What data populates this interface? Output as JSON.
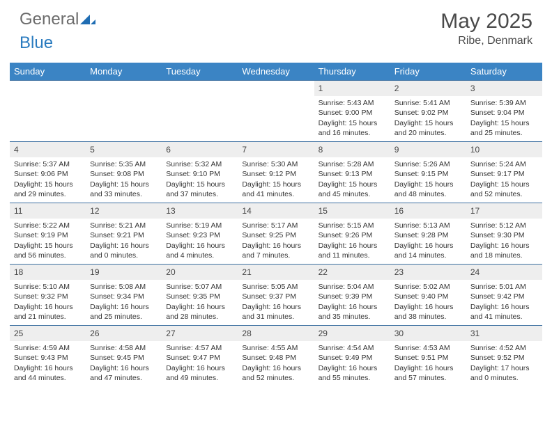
{
  "brand": {
    "name_part1": "General",
    "name_part2": "Blue"
  },
  "title": "May 2025",
  "location": "Ribe, Denmark",
  "colors": {
    "header_bg": "#3b84c4",
    "header_text": "#ffffff",
    "daynum_bg": "#eeeeee",
    "row_border": "#3b6fa0",
    "brand_gray": "#6b6b6b",
    "brand_blue": "#2a7bbf"
  },
  "weekdays": [
    "Sunday",
    "Monday",
    "Tuesday",
    "Wednesday",
    "Thursday",
    "Friday",
    "Saturday"
  ],
  "weeks": [
    [
      null,
      null,
      null,
      null,
      {
        "num": "1",
        "sunrise": "5:43 AM",
        "sunset": "9:00 PM",
        "daylight": "15 hours and 16 minutes."
      },
      {
        "num": "2",
        "sunrise": "5:41 AM",
        "sunset": "9:02 PM",
        "daylight": "15 hours and 20 minutes."
      },
      {
        "num": "3",
        "sunrise": "5:39 AM",
        "sunset": "9:04 PM",
        "daylight": "15 hours and 25 minutes."
      }
    ],
    [
      {
        "num": "4",
        "sunrise": "5:37 AM",
        "sunset": "9:06 PM",
        "daylight": "15 hours and 29 minutes."
      },
      {
        "num": "5",
        "sunrise": "5:35 AM",
        "sunset": "9:08 PM",
        "daylight": "15 hours and 33 minutes."
      },
      {
        "num": "6",
        "sunrise": "5:32 AM",
        "sunset": "9:10 PM",
        "daylight": "15 hours and 37 minutes."
      },
      {
        "num": "7",
        "sunrise": "5:30 AM",
        "sunset": "9:12 PM",
        "daylight": "15 hours and 41 minutes."
      },
      {
        "num": "8",
        "sunrise": "5:28 AM",
        "sunset": "9:13 PM",
        "daylight": "15 hours and 45 minutes."
      },
      {
        "num": "9",
        "sunrise": "5:26 AM",
        "sunset": "9:15 PM",
        "daylight": "15 hours and 48 minutes."
      },
      {
        "num": "10",
        "sunrise": "5:24 AM",
        "sunset": "9:17 PM",
        "daylight": "15 hours and 52 minutes."
      }
    ],
    [
      {
        "num": "11",
        "sunrise": "5:22 AM",
        "sunset": "9:19 PM",
        "daylight": "15 hours and 56 minutes."
      },
      {
        "num": "12",
        "sunrise": "5:21 AM",
        "sunset": "9:21 PM",
        "daylight": "16 hours and 0 minutes."
      },
      {
        "num": "13",
        "sunrise": "5:19 AM",
        "sunset": "9:23 PM",
        "daylight": "16 hours and 4 minutes."
      },
      {
        "num": "14",
        "sunrise": "5:17 AM",
        "sunset": "9:25 PM",
        "daylight": "16 hours and 7 minutes."
      },
      {
        "num": "15",
        "sunrise": "5:15 AM",
        "sunset": "9:26 PM",
        "daylight": "16 hours and 11 minutes."
      },
      {
        "num": "16",
        "sunrise": "5:13 AM",
        "sunset": "9:28 PM",
        "daylight": "16 hours and 14 minutes."
      },
      {
        "num": "17",
        "sunrise": "5:12 AM",
        "sunset": "9:30 PM",
        "daylight": "16 hours and 18 minutes."
      }
    ],
    [
      {
        "num": "18",
        "sunrise": "5:10 AM",
        "sunset": "9:32 PM",
        "daylight": "16 hours and 21 minutes."
      },
      {
        "num": "19",
        "sunrise": "5:08 AM",
        "sunset": "9:34 PM",
        "daylight": "16 hours and 25 minutes."
      },
      {
        "num": "20",
        "sunrise": "5:07 AM",
        "sunset": "9:35 PM",
        "daylight": "16 hours and 28 minutes."
      },
      {
        "num": "21",
        "sunrise": "5:05 AM",
        "sunset": "9:37 PM",
        "daylight": "16 hours and 31 minutes."
      },
      {
        "num": "22",
        "sunrise": "5:04 AM",
        "sunset": "9:39 PM",
        "daylight": "16 hours and 35 minutes."
      },
      {
        "num": "23",
        "sunrise": "5:02 AM",
        "sunset": "9:40 PM",
        "daylight": "16 hours and 38 minutes."
      },
      {
        "num": "24",
        "sunrise": "5:01 AM",
        "sunset": "9:42 PM",
        "daylight": "16 hours and 41 minutes."
      }
    ],
    [
      {
        "num": "25",
        "sunrise": "4:59 AM",
        "sunset": "9:43 PM",
        "daylight": "16 hours and 44 minutes."
      },
      {
        "num": "26",
        "sunrise": "4:58 AM",
        "sunset": "9:45 PM",
        "daylight": "16 hours and 47 minutes."
      },
      {
        "num": "27",
        "sunrise": "4:57 AM",
        "sunset": "9:47 PM",
        "daylight": "16 hours and 49 minutes."
      },
      {
        "num": "28",
        "sunrise": "4:55 AM",
        "sunset": "9:48 PM",
        "daylight": "16 hours and 52 minutes."
      },
      {
        "num": "29",
        "sunrise": "4:54 AM",
        "sunset": "9:49 PM",
        "daylight": "16 hours and 55 minutes."
      },
      {
        "num": "30",
        "sunrise": "4:53 AM",
        "sunset": "9:51 PM",
        "daylight": "16 hours and 57 minutes."
      },
      {
        "num": "31",
        "sunrise": "4:52 AM",
        "sunset": "9:52 PM",
        "daylight": "17 hours and 0 minutes."
      }
    ]
  ],
  "labels": {
    "sunrise": "Sunrise:",
    "sunset": "Sunset:",
    "daylight": "Daylight:"
  }
}
